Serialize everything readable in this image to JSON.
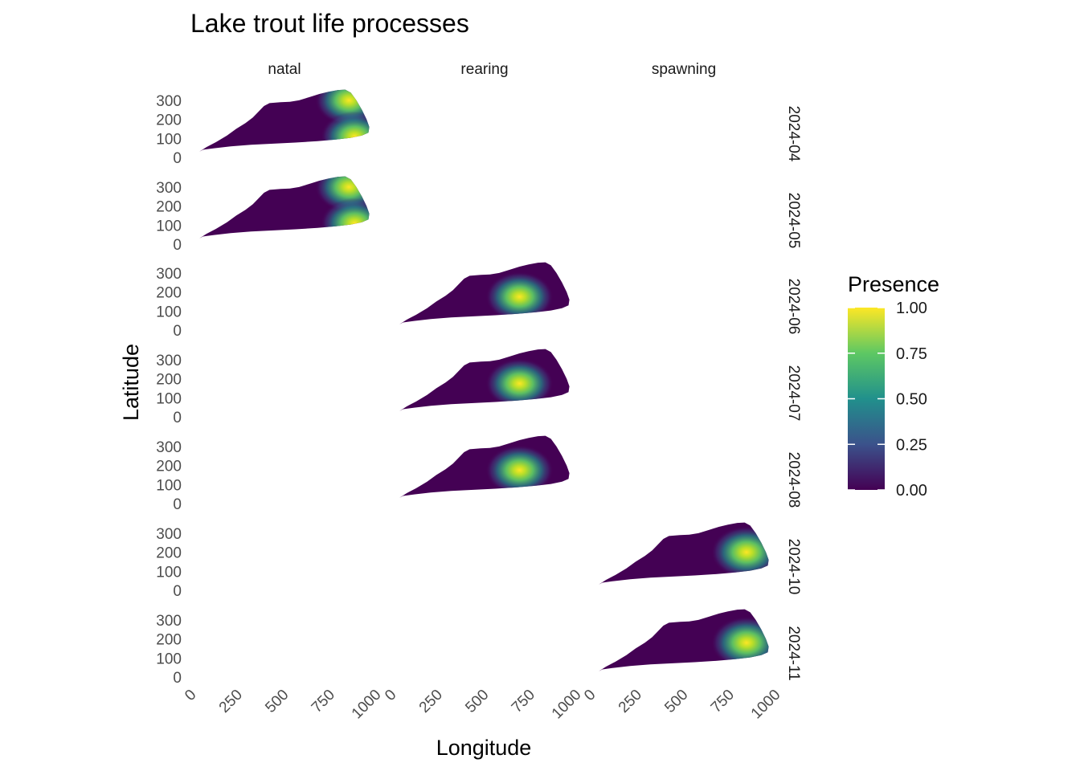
{
  "chart_data": {
    "type": "heatmap",
    "title": "Lake trout life processes",
    "xlabel": "Longitude",
    "ylabel": "Latitude",
    "xlim": [
      0,
      1000
    ],
    "ylim": [
      0,
      350
    ],
    "x_ticks": [
      "0",
      "250",
      "500",
      "750",
      "1000"
    ],
    "y_ticks": [
      "0",
      "100",
      "200",
      "300"
    ],
    "facet_columns": [
      "natal",
      "rearing",
      "spawning"
    ],
    "facet_rows": [
      "2024-04",
      "2024-05",
      "2024-06",
      "2024-07",
      "2024-08",
      "2024-10",
      "2024-11"
    ],
    "lake_outline": [
      [
        0,
        30
      ],
      [
        40,
        55
      ],
      [
        90,
        80
      ],
      [
        150,
        115
      ],
      [
        200,
        150
      ],
      [
        250,
        180
      ],
      [
        290,
        210
      ],
      [
        320,
        240
      ],
      [
        350,
        270
      ],
      [
        380,
        285
      ],
      [
        440,
        290
      ],
      [
        490,
        292
      ],
      [
        540,
        300
      ],
      [
        600,
        318
      ],
      [
        650,
        333
      ],
      [
        700,
        345
      ],
      [
        750,
        354
      ],
      [
        790,
        356
      ],
      [
        820,
        340
      ],
      [
        850,
        300
      ],
      [
        880,
        250
      ],
      [
        905,
        200
      ],
      [
        920,
        160
      ],
      [
        915,
        130
      ],
      [
        880,
        115
      ],
      [
        820,
        103
      ],
      [
        740,
        94
      ],
      [
        640,
        85
      ],
      [
        520,
        78
      ],
      [
        400,
        72
      ],
      [
        280,
        66
      ],
      [
        170,
        58
      ],
      [
        80,
        48
      ],
      [
        20,
        40
      ],
      [
        0,
        30
      ]
    ],
    "panels": [
      {
        "column": "natal",
        "row": "2024-04",
        "hotspots": [
          {
            "x": 810,
            "y": 300,
            "presence": 0.9
          },
          {
            "x": 840,
            "y": 110,
            "presence": 0.9
          }
        ]
      },
      {
        "column": "natal",
        "row": "2024-05",
        "hotspots": [
          {
            "x": 810,
            "y": 300,
            "presence": 0.9
          },
          {
            "x": 840,
            "y": 110,
            "presence": 0.9
          }
        ]
      },
      {
        "column": "rearing",
        "row": "2024-06",
        "hotspots": [
          {
            "x": 650,
            "y": 175,
            "presence": 0.9
          }
        ]
      },
      {
        "column": "rearing",
        "row": "2024-07",
        "hotspots": [
          {
            "x": 650,
            "y": 175,
            "presence": 0.9
          }
        ]
      },
      {
        "column": "rearing",
        "row": "2024-08",
        "hotspots": [
          {
            "x": 650,
            "y": 175,
            "presence": 0.9
          }
        ]
      },
      {
        "column": "spawning",
        "row": "2024-10",
        "hotspots": [
          {
            "x": 800,
            "y": 200,
            "presence": 0.95
          }
        ]
      },
      {
        "column": "spawning",
        "row": "2024-11",
        "hotspots": [
          {
            "x": 800,
            "y": 180,
            "presence": 0.95
          }
        ]
      }
    ],
    "legend": {
      "title": "Presence",
      "labels": [
        "1.00",
        "0.75",
        "0.50",
        "0.25",
        "0.00"
      ],
      "range": [
        0,
        1
      ],
      "palette": "viridis",
      "colors": [
        "#440154",
        "#3b528b",
        "#21908c",
        "#5dc863",
        "#fde725"
      ]
    }
  }
}
